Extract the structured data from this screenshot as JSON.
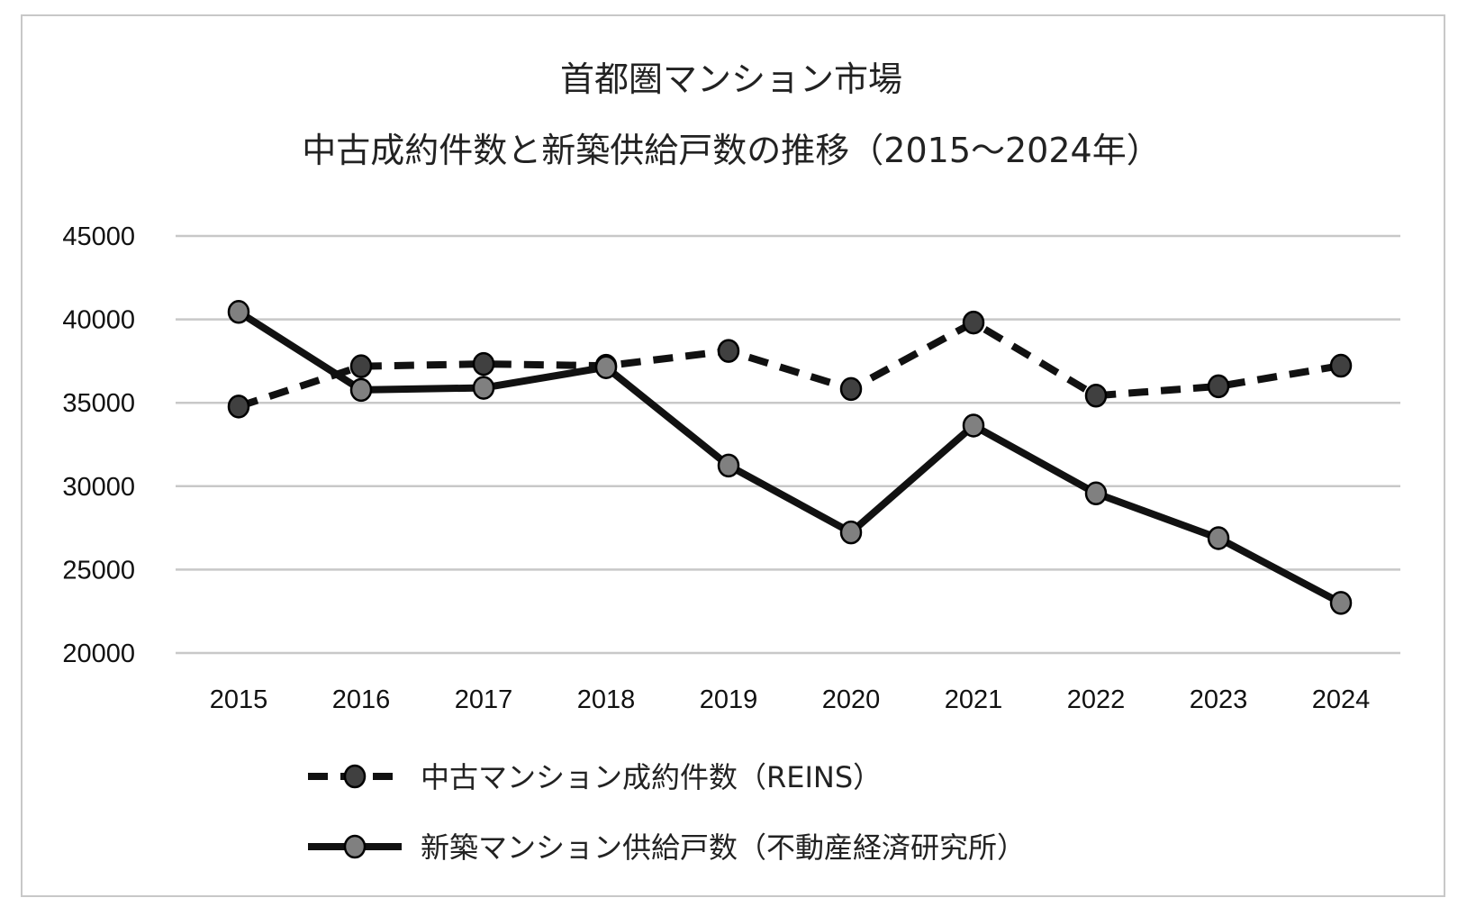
{
  "chart_data": {
    "type": "line",
    "title": [
      "首都圏マンション市場",
      "中古成約件数と新築供給戸数の推移（2015～2024年）"
    ],
    "xlabel": "",
    "ylabel": "",
    "categories": [
      "2015",
      "2016",
      "2017",
      "2018",
      "2019",
      "2020",
      "2021",
      "2022",
      "2023",
      "2024"
    ],
    "ylim": [
      20000,
      45000
    ],
    "yticks": [
      20000,
      25000,
      30000,
      35000,
      40000,
      45000
    ],
    "ytick_labels": [
      "20000",
      "25000",
      "30000",
      "35000",
      "40000",
      "45000"
    ],
    "grid": true,
    "legend_position": "bottom",
    "series": [
      {
        "name": "中古マンション成約件数（REINS）",
        "style": "dashed",
        "marker_color": "#404040",
        "values": [
          34776,
          37189,
          37329,
          37217,
          38109,
          35825,
          39812,
          35429,
          35987,
          37222
        ]
      },
      {
        "name": "新築マンション供給戸数（不動産経済研究所）",
        "style": "solid",
        "marker_color": "#808080",
        "values": [
          40449,
          35772,
          35898,
          37132,
          31238,
          27228,
          33636,
          29569,
          26886,
          23003
        ]
      }
    ],
    "colors": {
      "line": "#111111",
      "grid": "#c8c8c8",
      "border": "#c8c8c8"
    }
  }
}
